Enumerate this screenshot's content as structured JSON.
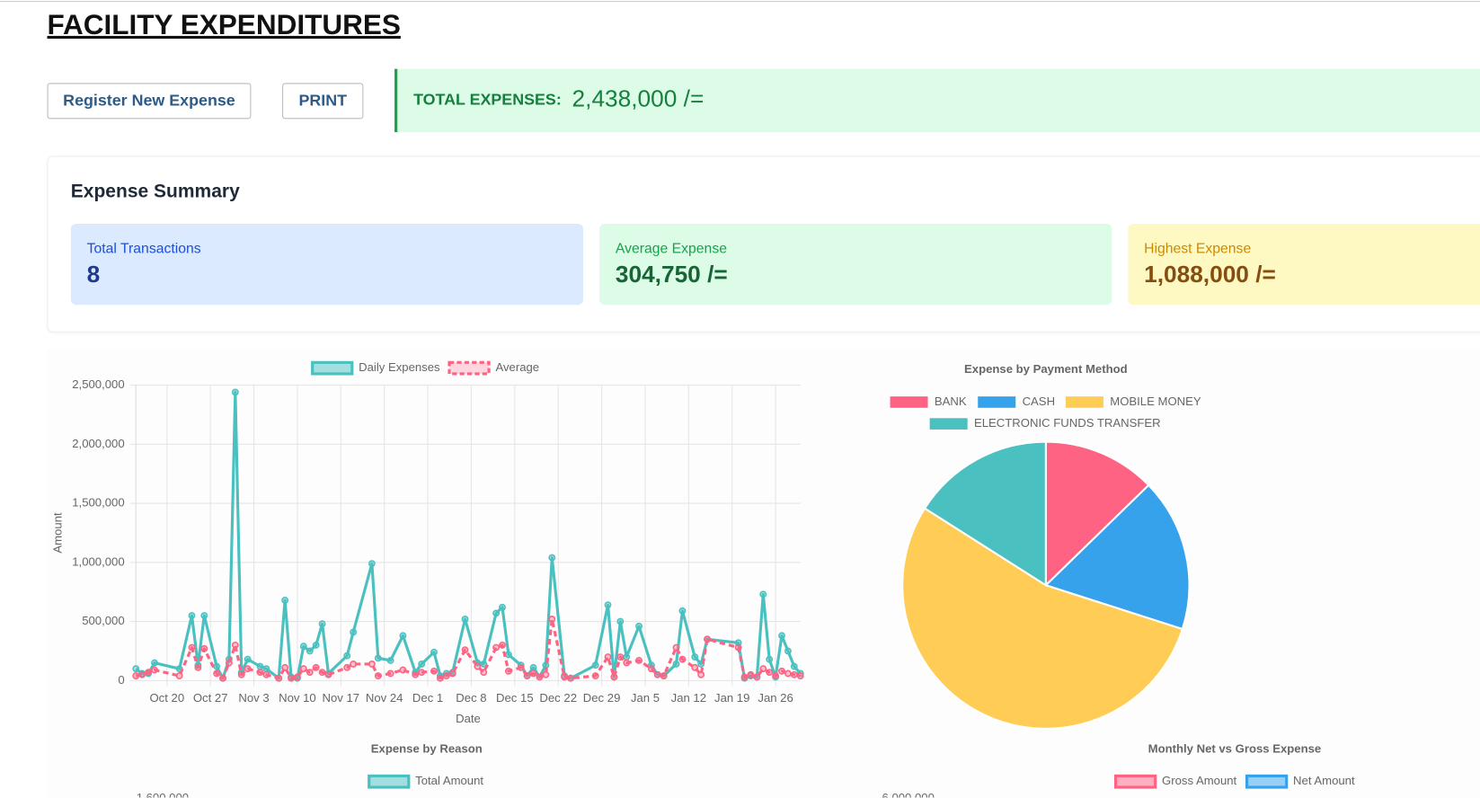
{
  "header": {
    "title": "FACILITY EXPENDITURES"
  },
  "actions": {
    "register": "Register New Expense",
    "print": "PRINT"
  },
  "total": {
    "label": "TOTAL EXPENSES:",
    "value": "2,438,000 /="
  },
  "summary": {
    "title": "Expense Summary",
    "cards": [
      {
        "label": "Total Transactions",
        "value": "8"
      },
      {
        "label": "Average Expense",
        "value": "304,750 /="
      },
      {
        "label": "Highest Expense",
        "value": "1,088,000 /="
      }
    ]
  },
  "chart_data": [
    {
      "type": "line",
      "x_label": "Date",
      "y_label": "Amount",
      "x": [
        -5,
        -4,
        -3,
        -2,
        2,
        4,
        5,
        6,
        8,
        9,
        10,
        11,
        12,
        13,
        15,
        16,
        18,
        19,
        20,
        21,
        22,
        23,
        24,
        25,
        26,
        29,
        30,
        33,
        34,
        36,
        38,
        40,
        41,
        43,
        44,
        45,
        46,
        48,
        50,
        51,
        53,
        54,
        55,
        57,
        58,
        59,
        60,
        61,
        62,
        64,
        65,
        69,
        71,
        72,
        73,
        74,
        76,
        78,
        79,
        80,
        82,
        83,
        85,
        86,
        87,
        92,
        93,
        94,
        95,
        96,
        97,
        98,
        99,
        100,
        101,
        102
      ],
      "xlim": [
        -5,
        102
      ],
      "xticks": [
        {
          "value": 0,
          "label": "Oct 20"
        },
        {
          "value": 7,
          "label": "Oct 27"
        },
        {
          "value": 14,
          "label": "Nov 3"
        },
        {
          "value": 21,
          "label": "Nov 10"
        },
        {
          "value": 28,
          "label": "Nov 17"
        },
        {
          "value": 35,
          "label": "Nov 24"
        },
        {
          "value": 42,
          "label": "Dec 1"
        },
        {
          "value": 49,
          "label": "Dec 8"
        },
        {
          "value": 56,
          "label": "Dec 15"
        },
        {
          "value": 63,
          "label": "Dec 22"
        },
        {
          "value": 70,
          "label": "Dec 29"
        },
        {
          "value": 77,
          "label": "Jan 5"
        },
        {
          "value": 84,
          "label": "Jan 12"
        },
        {
          "value": 91,
          "label": "Jan 19"
        },
        {
          "value": 98,
          "label": "Jan 26"
        }
      ],
      "ylim": [
        0,
        2500000
      ],
      "yticks": [
        0,
        {
          "value": 500000,
          "label": "500,000"
        },
        {
          "value": 1000000,
          "label": "1,000,000"
        },
        {
          "value": 1500000,
          "label": "1,500,000"
        },
        {
          "value": 2000000,
          "label": "2,000,000"
        },
        {
          "value": 2500000,
          "label": "2,500,000"
        }
      ],
      "grid": true,
      "series": [
        {
          "name": "Daily Expenses",
          "color": "#4bc0c0",
          "values": [
            100000,
            60000,
            60000,
            150000,
            100000,
            550000,
            130000,
            550000,
            120000,
            20000,
            180000,
            2440000,
            70000,
            180000,
            120000,
            100000,
            20000,
            680000,
            30000,
            20000,
            290000,
            250000,
            300000,
            480000,
            60000,
            210000,
            410000,
            990000,
            190000,
            170000,
            380000,
            70000,
            140000,
            240000,
            40000,
            60000,
            70000,
            520000,
            150000,
            140000,
            570000,
            620000,
            220000,
            130000,
            40000,
            110000,
            30000,
            130000,
            1040000,
            40000,
            20000,
            130000,
            640000,
            30000,
            500000,
            200000,
            460000,
            130000,
            50000,
            40000,
            140000,
            590000,
            200000,
            140000,
            350000,
            320000,
            20000,
            40000,
            30000,
            730000,
            180000,
            30000,
            380000,
            250000,
            120000,
            60000
          ]
        },
        {
          "name": "Average",
          "color": "#ff6384",
          "line_style": "dashed",
          "values": [
            40000,
            50000,
            70000,
            90000,
            40000,
            280000,
            110000,
            270000,
            60000,
            20000,
            150000,
            300000,
            50000,
            100000,
            70000,
            50000,
            20000,
            110000,
            20000,
            30000,
            100000,
            70000,
            110000,
            70000,
            50000,
            110000,
            140000,
            140000,
            40000,
            60000,
            90000,
            50000,
            70000,
            80000,
            20000,
            40000,
            60000,
            260000,
            120000,
            70000,
            280000,
            300000,
            80000,
            110000,
            40000,
            60000,
            30000,
            50000,
            520000,
            30000,
            20000,
            40000,
            200000,
            30000,
            200000,
            150000,
            170000,
            100000,
            50000,
            40000,
            280000,
            180000,
            110000,
            50000,
            350000,
            280000,
            30000,
            50000,
            30000,
            100000,
            70000,
            40000,
            80000,
            60000,
            50000,
            40000
          ]
        }
      ]
    },
    {
      "type": "pie",
      "title": "Expense by Payment Method",
      "categories": [
        "BANK",
        "CASH",
        "MOBILE MONEY",
        "ELECTRONIC FUNDS TRANSFER"
      ],
      "values": [
        310000,
        420000,
        1318000,
        390000
      ],
      "colors": [
        "#ff6384",
        "#36a2eb",
        "#ffcd56",
        "#4bc0c0"
      ]
    },
    {
      "type": "bar",
      "title": "Expense by Reason",
      "yticks": [
        {
          "value": 1600000,
          "label": "1,600,000"
        }
      ],
      "series": [
        {
          "name": "Total Amount",
          "color": "#4bc0c0"
        }
      ]
    },
    {
      "type": "bar",
      "title": "Monthly Net vs Gross Expense",
      "yticks": [
        {
          "value": 6000000,
          "label": "6,000,000"
        }
      ],
      "series": [
        {
          "name": "Gross Amount",
          "color": "#ff6384"
        },
        {
          "name": "Net Amount",
          "color": "#36a2eb"
        }
      ]
    }
  ]
}
